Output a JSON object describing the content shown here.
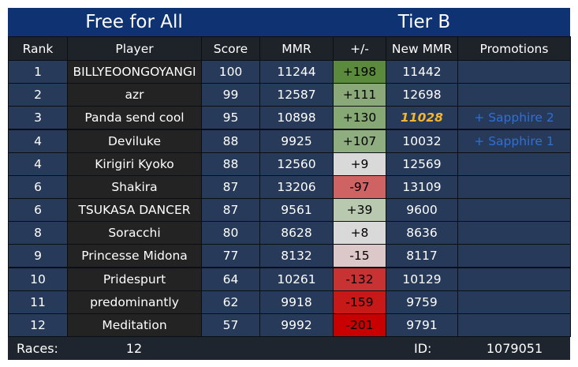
{
  "header": {
    "left": "Free for All",
    "right": "Tier B"
  },
  "table": {
    "columns": [
      "Rank",
      "Player",
      "Score",
      "MMR",
      "+/-",
      "New MMR",
      "Promotions"
    ],
    "rows": [
      [
        "1",
        "BILLYEOONGOYANGI",
        "100",
        "11244",
        "+198",
        "11442",
        ""
      ],
      [
        "2",
        "azr",
        "99",
        "12587",
        "+111",
        "12698",
        ""
      ],
      [
        "3",
        "Panda send cool",
        "95",
        "10898",
        "+130",
        "11028",
        "+ Sapphire 2"
      ],
      [
        "4",
        "Deviluke",
        "88",
        "9925",
        "+107",
        "10032",
        "+ Sapphire 1"
      ],
      [
        "4",
        "Kirigiri Kyoko",
        "88",
        "12560",
        "+9",
        "12569",
        ""
      ],
      [
        "6",
        "Shakira",
        "87",
        "13206",
        "-97",
        "13109",
        ""
      ],
      [
        "6",
        "TSUKASA DANCER",
        "87",
        "9561",
        "+39",
        "9600",
        ""
      ],
      [
        "8",
        "Soracchi",
        "80",
        "8628",
        "+8",
        "8636",
        ""
      ],
      [
        "9",
        "Princesse Midona",
        "77",
        "8132",
        "-15",
        "8117",
        ""
      ],
      [
        "10",
        "Pridespurt",
        "64",
        "10261",
        "-132",
        "10129",
        ""
      ],
      [
        "11",
        "predominantly",
        "62",
        "9918",
        "-159",
        "9759",
        ""
      ],
      [
        "12",
        "Meditation",
        "57",
        "9992",
        "-201",
        "9791",
        ""
      ]
    ],
    "delta_colors": [
      "#5b8a3c",
      "#8aa878",
      "#86a874",
      "#8fae80",
      "#d9d9d9",
      "#cf6262",
      "#b9c9b0",
      "#d9d9d9",
      "#dcc8c8",
      "#c93232",
      "#c81919",
      "#c80000"
    ],
    "highlight_cell": {
      "row": 2,
      "col": 5,
      "color": "#f2b632"
    }
  },
  "footer": {
    "races_label": "Races:",
    "races": "12",
    "id_label": "ID:",
    "id": "1079051"
  }
}
